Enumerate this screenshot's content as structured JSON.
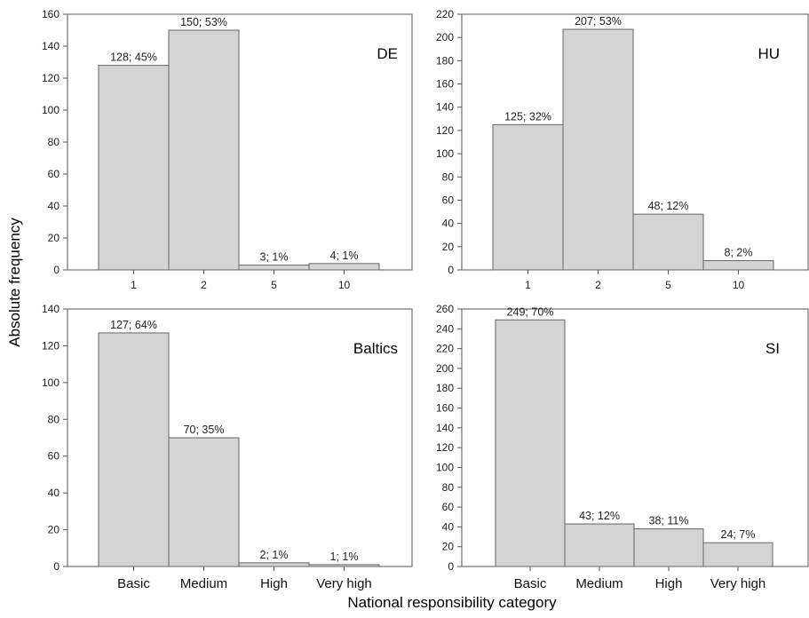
{
  "chart_data": {
    "xlabel": "National responsibility category",
    "ylabel": "Absolute frequency",
    "panels": [
      {
        "type": "bar",
        "region": "DE",
        "categories": [
          "1",
          "2",
          "5",
          "10"
        ],
        "values": [
          128,
          150,
          3,
          4
        ],
        "labels": [
          "128; 45%",
          "150; 53%",
          "3; 1%",
          "4; 1%"
        ],
        "ylim": [
          0,
          160
        ],
        "yticks": [
          0,
          20,
          40,
          60,
          80,
          100,
          120,
          140,
          160
        ],
        "bar_color": "#d4d4d4"
      },
      {
        "type": "bar",
        "region": "HU",
        "categories": [
          "1",
          "2",
          "5",
          "10"
        ],
        "values": [
          125,
          207,
          48,
          8
        ],
        "labels": [
          "125; 32%",
          "207; 53%",
          "48; 12%",
          "8; 2%"
        ],
        "ylim": [
          0,
          220
        ],
        "yticks": [
          0,
          20,
          40,
          60,
          80,
          100,
          120,
          140,
          160,
          180,
          200,
          220
        ],
        "bar_color": "#d4d4d4"
      },
      {
        "type": "bar",
        "region": "Baltics",
        "categories": [
          "Basic",
          "Medium",
          "High",
          "Very high"
        ],
        "values": [
          127,
          70,
          2,
          1
        ],
        "labels": [
          "127; 64%",
          "70; 35%",
          "2; 1%",
          "1; 1%"
        ],
        "ylim": [
          0,
          140
        ],
        "yticks": [
          0,
          20,
          40,
          60,
          80,
          100,
          120,
          140
        ],
        "bar_color": "#d4d4d4"
      },
      {
        "type": "bar",
        "region": "SI",
        "categories": [
          "Basic",
          "Medium",
          "High",
          "Very high"
        ],
        "values": [
          249,
          43,
          38,
          24
        ],
        "labels": [
          "249; 70%",
          "43; 12%",
          "38; 11%",
          "24; 7%"
        ],
        "ylim": [
          0,
          260
        ],
        "yticks": [
          0,
          20,
          40,
          60,
          80,
          100,
          120,
          140,
          160,
          180,
          200,
          220,
          240,
          260
        ],
        "bar_color": "#d4d4d4"
      }
    ]
  }
}
